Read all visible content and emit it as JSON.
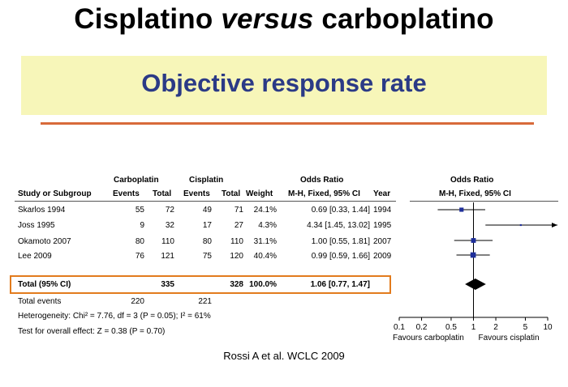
{
  "title_main_a": "Cisplatino ",
  "title_main_b": "versus",
  "title_main_c": " carboplatino",
  "banner_title": "Objective response rate",
  "table": {
    "group_headers": {
      "carboplatin": "Carboplatin",
      "cisplatin": "Cisplatin",
      "odds_ratio": "Odds Ratio",
      "odds_ratio_plot": "Odds Ratio"
    },
    "columns": {
      "study": "Study or Subgroup",
      "events1": "Events",
      "total1": "Total",
      "events2": "Events",
      "total2": "Total",
      "weight": "Weight",
      "method": "M-H, Fixed, 95% CI",
      "year": "Year",
      "method_plot": "M-H, Fixed, 95% CI"
    },
    "rows": [
      {
        "study": "Skarlos 1994",
        "events1": "55",
        "total1": "72",
        "events2": "49",
        "total2": "71",
        "weight": "24.1%",
        "ci": "0.69 [0.33, 1.44]",
        "year": "1994"
      },
      {
        "study": "Joss 1995",
        "events1": "9",
        "total1": "32",
        "events2": "17",
        "total2": "27",
        "weight": "4.3%",
        "ci": "4.34 [1.45, 13.02]",
        "year": "1995"
      },
      {
        "study": "Okamoto 2007",
        "events1": "80",
        "total1": "110",
        "events2": "80",
        "total2": "110",
        "weight": "31.1%",
        "ci": "1.00 [0.55, 1.81]",
        "year": "2007"
      },
      {
        "study": "Lee 2009",
        "events1": "76",
        "total1": "121",
        "events2": "75",
        "total2": "120",
        "weight": "40.4%",
        "ci": "0.99 [0.59, 1.66]",
        "year": "2009"
      }
    ],
    "total": {
      "label": "Total (95% CI)",
      "total1": "335",
      "total2": "328",
      "weight": "100.0%",
      "ci": "1.06 [0.77, 1.47]"
    },
    "total_events": {
      "label": "Total events",
      "events1": "220",
      "events2": "221"
    },
    "heterogeneity": "Heterogeneity: Chi² = 7.76, df = 3 (P = 0.05); I² = 61%",
    "overall_effect": "Test for overall effect: Z = 0.38 (P = 0.70)"
  },
  "chart_data": {
    "type": "forest",
    "x_scale": "log",
    "x_range": [
      0.1,
      10
    ],
    "ticks": [
      "0.1",
      "0.2",
      "0.5",
      "1",
      "2",
      "5",
      "10"
    ],
    "tick_values": [
      0.1,
      0.2,
      0.5,
      1,
      2,
      5,
      10
    ],
    "reference_line": 1,
    "favours_left": "Favours carboplatin",
    "favours_right": "Favours cisplatin",
    "studies": [
      {
        "name": "Skarlos 1994",
        "or": 0.69,
        "lo": 0.33,
        "hi": 1.44,
        "weight": 24.1
      },
      {
        "name": "Joss 1995",
        "or": 4.34,
        "lo": 1.45,
        "hi": 13.02,
        "weight": 4.3
      },
      {
        "name": "Okamoto 2007",
        "or": 1.0,
        "lo": 0.55,
        "hi": 1.81,
        "weight": 31.1
      },
      {
        "name": "Lee 2009",
        "or": 0.99,
        "lo": 0.59,
        "hi": 1.66,
        "weight": 40.4
      }
    ],
    "pooled": {
      "or": 1.06,
      "lo": 0.77,
      "hi": 1.47
    },
    "colors": {
      "marker": "#1f2f9a",
      "line": "#000000"
    }
  },
  "citation": "Rossi A et al. WCLC 2009"
}
